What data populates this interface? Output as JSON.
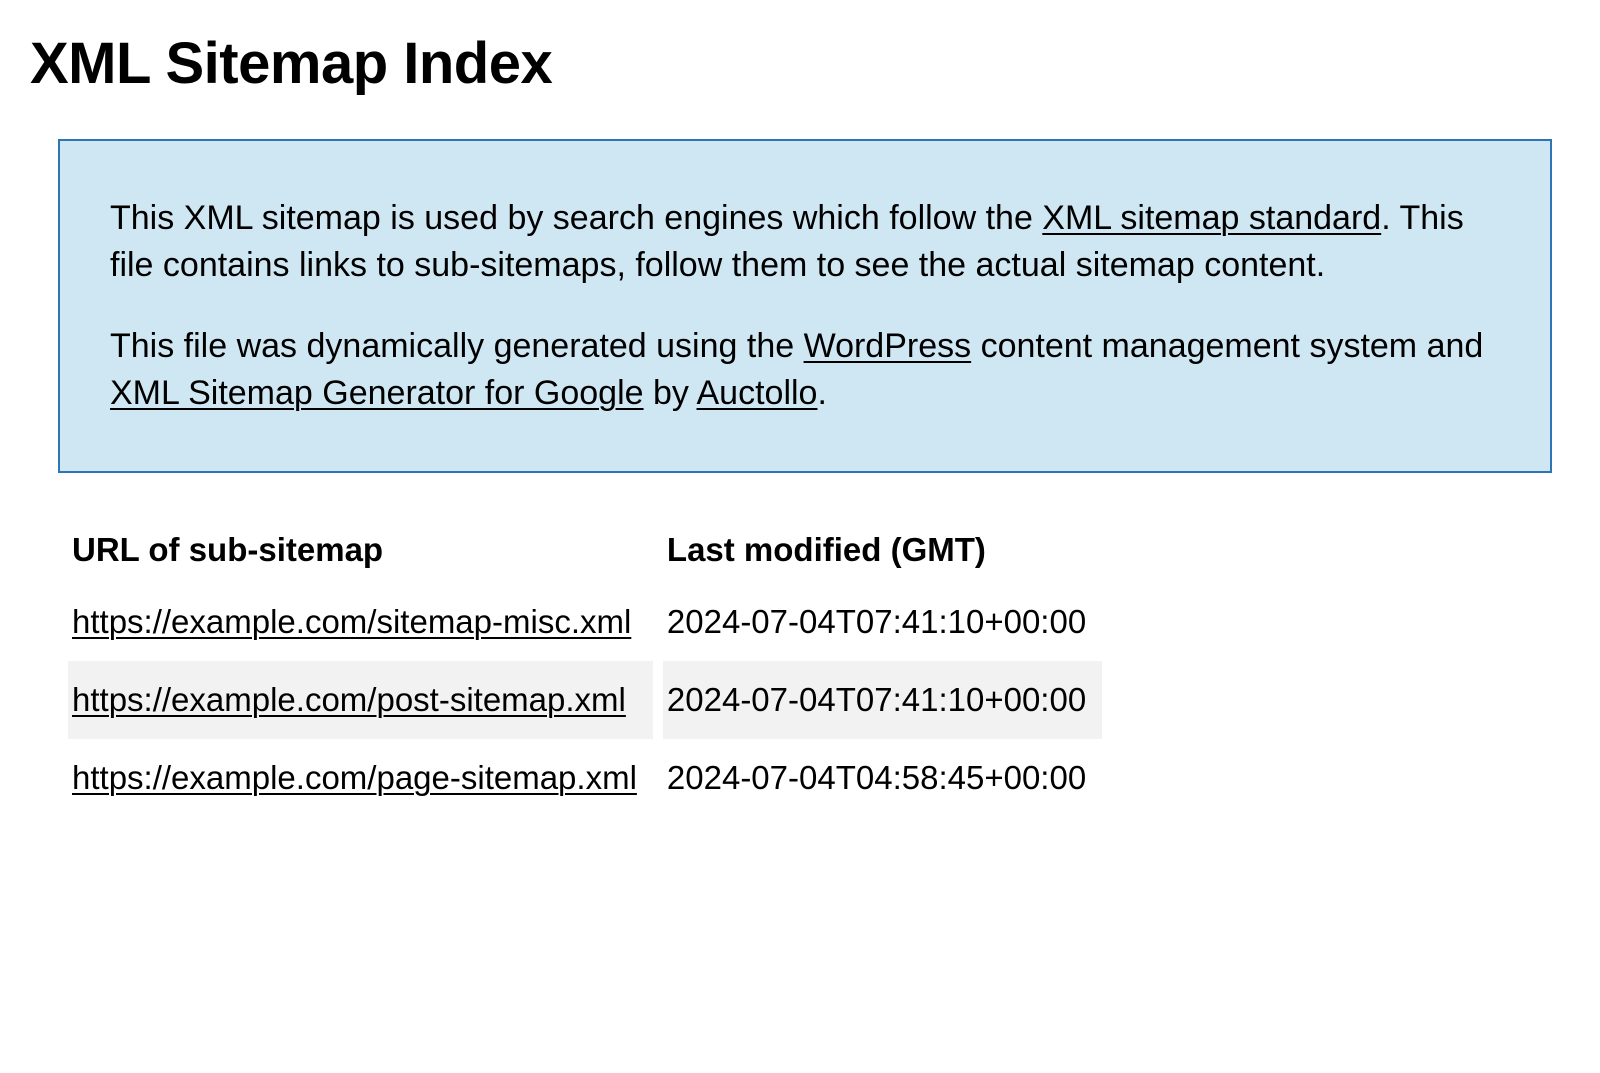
{
  "title": "XML Sitemap Index",
  "info": {
    "p1_prefix": "This XML sitemap is used by search engines which follow the ",
    "link_standard": "XML sitemap standard",
    "p1_suffix": ". This file contains links to sub-sitemaps, follow them to see the actual sitemap content.",
    "p2_prefix": "This file was dynamically generated using the ",
    "link_wp": "WordPress",
    "p2_mid1": " content management system and ",
    "link_generator": "XML Sitemap Generator for Google",
    "p2_mid2": " by ",
    "link_auctollo": "Auctollo",
    "p2_suffix": "."
  },
  "table": {
    "columns": [
      "URL of sub-sitemap",
      "Last modified (GMT)"
    ],
    "rows": [
      {
        "url": "https://example.com/sitemap-misc.xml",
        "modified": "2024-07-04T07:41:10+00:00"
      },
      {
        "url": "https://example.com/post-sitemap.xml",
        "modified": "2024-07-04T07:41:10+00:00"
      },
      {
        "url": "https://example.com/page-sitemap.xml",
        "modified": "2024-07-04T04:58:45+00:00"
      }
    ]
  },
  "colors": {
    "info_bg": "#cfe7f3",
    "info_border": "#2e75b6",
    "row_alt_bg": "#f2f2f2",
    "text": "#000000",
    "background": "#ffffff"
  }
}
